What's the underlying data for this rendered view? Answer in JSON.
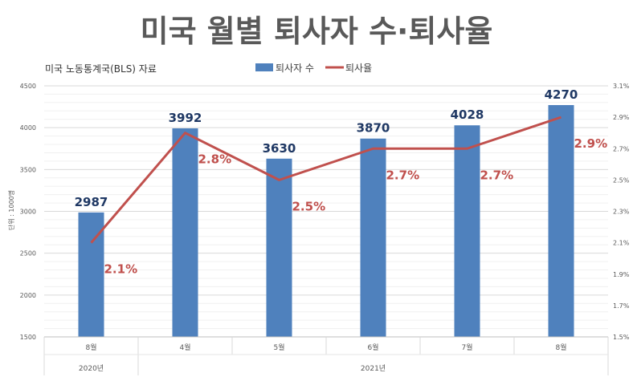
{
  "chart_data": {
    "type": "bar",
    "title": "미국 월별 퇴사자 수·퇴사율",
    "source": "미국 노동통계국(BLS) 자료",
    "ylabel": "단위 : 1000명",
    "categories": [
      "8월",
      "4월",
      "5월",
      "6월",
      "7월",
      "8월"
    ],
    "year_groups": [
      {
        "label": "2020년",
        "span": 1
      },
      {
        "label": "2021년",
        "span": 5
      }
    ],
    "ylim": [
      1500,
      4500
    ],
    "yticks": [
      1500,
      2000,
      2500,
      3000,
      3500,
      4000,
      4500
    ],
    "y2lim": [
      1.5,
      3.1
    ],
    "y2ticks": [
      "1.5%",
      "1.7%",
      "1.9%",
      "2.1%",
      "2.3%",
      "2.5%",
      "2.7%",
      "2.9%",
      "3.1%"
    ],
    "series": [
      {
        "name": "퇴사자 수",
        "kind": "bar",
        "color": "#4f81bd",
        "values": [
          2987,
          3992,
          3630,
          3870,
          4028,
          4270
        ],
        "labels": [
          "2987",
          "3992",
          "3630",
          "3870",
          "4028",
          "4270"
        ]
      },
      {
        "name": "퇴사율",
        "kind": "line",
        "axis": "right",
        "color": "#c0504d",
        "values": [
          2.1,
          2.8,
          2.5,
          2.7,
          2.7,
          2.9
        ],
        "labels": [
          "2.1%",
          "2.8%",
          "2.5%",
          "2.7%",
          "2.7%",
          "2.9%"
        ]
      }
    ],
    "grid": true
  }
}
